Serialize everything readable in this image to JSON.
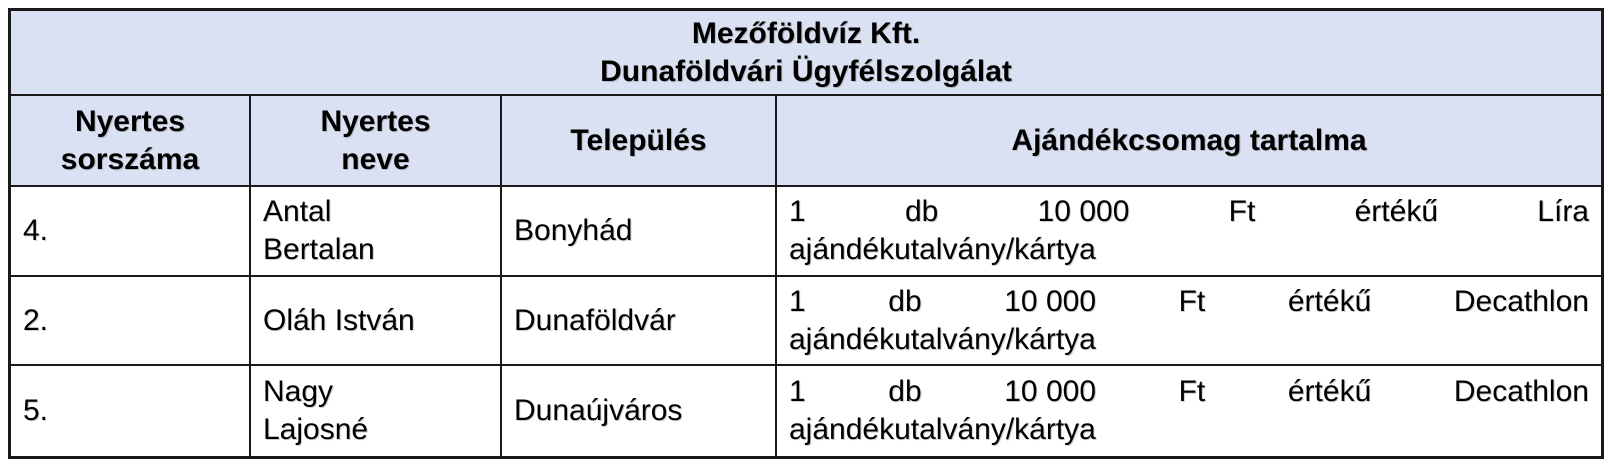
{
  "title": "Mezőföldvíz Kft.\nDunaföldvári Ügyfélszolgálat",
  "columns": [
    {
      "label": "Nyertes\nsorszáma"
    },
    {
      "label": "Nyertes\nneve"
    },
    {
      "label": "Település"
    },
    {
      "label": "Ajándékcsomag tartalma"
    }
  ],
  "rows": [
    {
      "number": "4.",
      "name": "Antal\nBertalan",
      "city": "Bonyhád",
      "gift": {
        "line1_words": [
          "1",
          "db",
          "10 000",
          "Ft",
          "értékű",
          "Líra"
        ],
        "line2": "ajándékutalvány/kártya",
        "full_text": "1 db 10 000 Ft értékű Líra ajándékutalvány/kártya"
      }
    },
    {
      "number": "2.",
      "name": "Oláh István",
      "city": "Dunaföldvár",
      "gift": {
        "line1_words": [
          "1",
          "db",
          "10 000",
          "Ft",
          "értékű",
          "Decathlon"
        ],
        "line2": "ajándékutalvány/kártya",
        "full_text": "1 db 10 000 Ft értékű Decathlon ajándékutalvány/kártya"
      }
    },
    {
      "number": "5.",
      "name": "Nagy\nLajosné",
      "city": "Dunaújváros",
      "gift": {
        "line1_words": [
          "1",
          "db",
          "10 000",
          "Ft",
          "értékű",
          "Decathlon"
        ],
        "line2": "ajándékutalvány/kártya",
        "full_text": "1 db 10 000 Ft értékű Decathlon ajándékutalvány/kártya"
      }
    }
  ],
  "colors": {
    "header_bg": "#D9E1F2",
    "border": "#1A1A1A",
    "text": "#000000",
    "row_bg": "#FFFFFF"
  }
}
